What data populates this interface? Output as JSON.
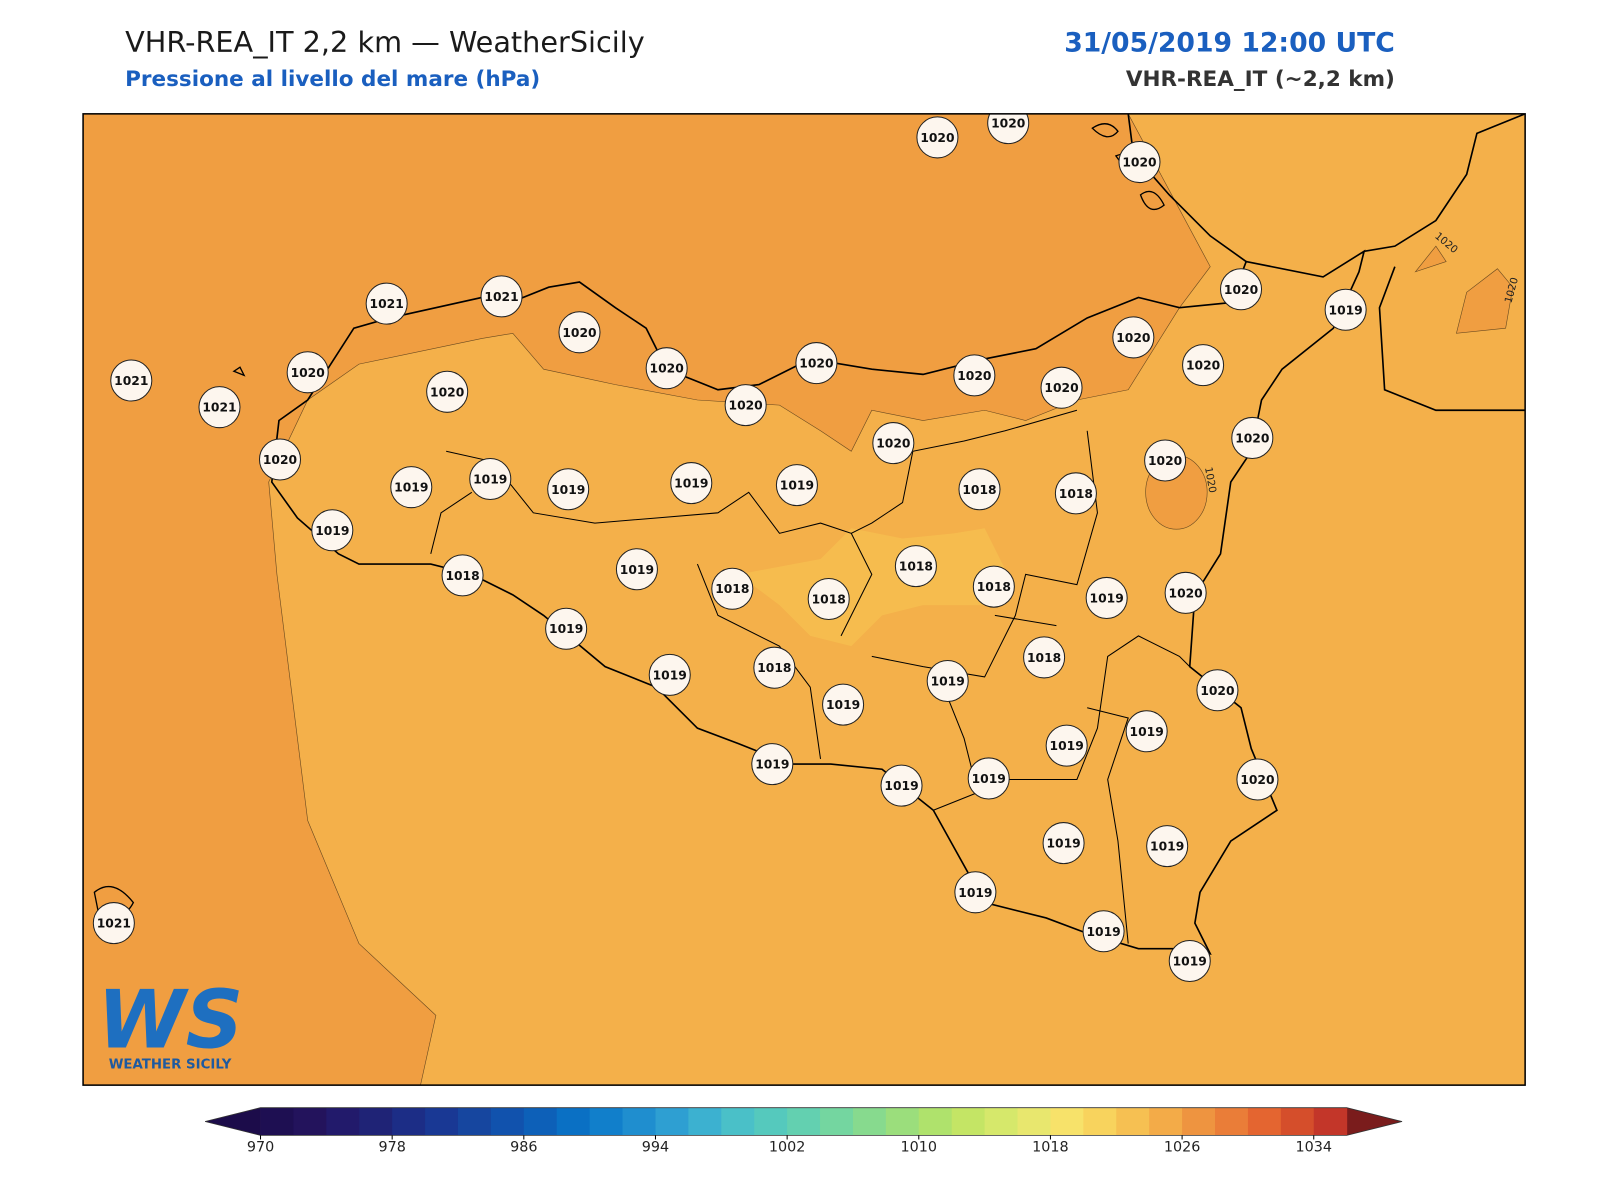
{
  "header": {
    "title": "VHR-REA_IT 2,2 km — WeatherSicily",
    "subtitle": "Pressione al livello del mare (hPa)",
    "date": "31/05/2019 12:00 UTC",
    "model": "VHR-REA_IT (~2,2 km)"
  },
  "map": {
    "station_values": [
      1020,
      1020,
      1020,
      1020,
      1019,
      1021,
      1021,
      1020,
      1021,
      1021,
      1020,
      1020,
      1020,
      1020,
      1020,
      1020,
      1020,
      1020,
      1020,
      1020,
      1020,
      1020,
      1020,
      1019,
      1019,
      1019,
      1019,
      1019,
      1018,
      1018,
      1019,
      1018,
      1019,
      1018,
      1018,
      1018,
      1018,
      1019,
      1020,
      1019,
      1019,
      1018,
      1019,
      1019,
      1018,
      1020,
      1019,
      1019,
      1019,
      1019,
      1019,
      1020,
      1019,
      1019,
      1019,
      1019,
      1019,
      1021
    ],
    "contour_labels": [
      "1020",
      "1020",
      "1020"
    ],
    "logo": {
      "mark": "WS",
      "name": "WEATHER SICILY"
    }
  },
  "colorbar": {
    "lim": [
      970,
      1036
    ],
    "ticks": [
      970,
      978,
      986,
      994,
      1002,
      1010,
      1018,
      1026,
      1034
    ],
    "colors": [
      "#1e0f52",
      "#23135c",
      "#221a6b",
      "#1f2376",
      "#1c2d86",
      "#193894",
      "#16469f",
      "#1152ad",
      "#0d60b8",
      "#0a70c4",
      "#117fcb",
      "#1f8ecf",
      "#2e9fd2",
      "#3cb1d0",
      "#4ac0c8",
      "#55c9bd",
      "#63d0b0",
      "#74d6a0",
      "#87da8e",
      "#9bde7c",
      "#afe26c",
      "#c4e565",
      "#d6e86b",
      "#e8e76e",
      "#f7e26a",
      "#f8d35d",
      "#f6c052",
      "#f3ab48",
      "#ee9440",
      "#ea7d38",
      "#e46530",
      "#d54e2b",
      "#c33629"
    ],
    "under_color": "#1c0c4a",
    "over_color": "#7a1c1c"
  }
}
